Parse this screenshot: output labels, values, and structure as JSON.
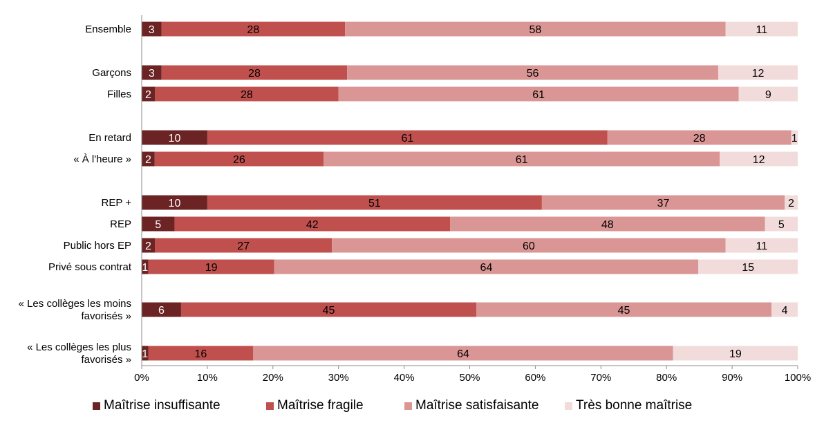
{
  "chart_data": {
    "type": "bar",
    "orientation": "horizontal",
    "stacked": true,
    "percent_stacked": true,
    "categories": [
      [
        "Ensemble"
      ],
      [
        "Garçons"
      ],
      [
        "Filles"
      ],
      [
        "En retard"
      ],
      [
        "« À l'heure »"
      ],
      [
        "REP +"
      ],
      [
        "REP"
      ],
      [
        "Public hors EP"
      ],
      [
        "Privé sous contrat"
      ],
      [
        "« Les collèges les moins",
        "favorisés »"
      ],
      [
        "« Les collèges les plus",
        "favorisés »"
      ]
    ],
    "series": [
      {
        "name": "Maîtrise insuffisante",
        "color": "#6b2323",
        "label_color": "#ffffff",
        "values": [
          3,
          3,
          2,
          10,
          2,
          10,
          5,
          2,
          1,
          6,
          1
        ]
      },
      {
        "name": "Maîtrise fragile",
        "color": "#c0504d",
        "label_color": "#000000",
        "values": [
          28,
          28,
          28,
          61,
          26,
          51,
          42,
          27,
          19,
          45,
          16
        ]
      },
      {
        "name": "Maîtrise satisfaisante",
        "color": "#da9694",
        "label_color": "#000000",
        "values": [
          58,
          56,
          61,
          28,
          61,
          37,
          48,
          60,
          64,
          45,
          64
        ]
      },
      {
        "name": "Très bonne maîtrise",
        "color": "#f2dcdb",
        "label_color": "#000000",
        "values": [
          11,
          12,
          9,
          1,
          12,
          2,
          5,
          11,
          15,
          4,
          19
        ]
      }
    ],
    "xticks": [
      "0%",
      "10%",
      "20%",
      "30%",
      "40%",
      "50%",
      "60%",
      "70%",
      "80%",
      "90%",
      "100%"
    ],
    "xlim": [
      0,
      100
    ],
    "grid": false,
    "legend_position": "bottom"
  }
}
